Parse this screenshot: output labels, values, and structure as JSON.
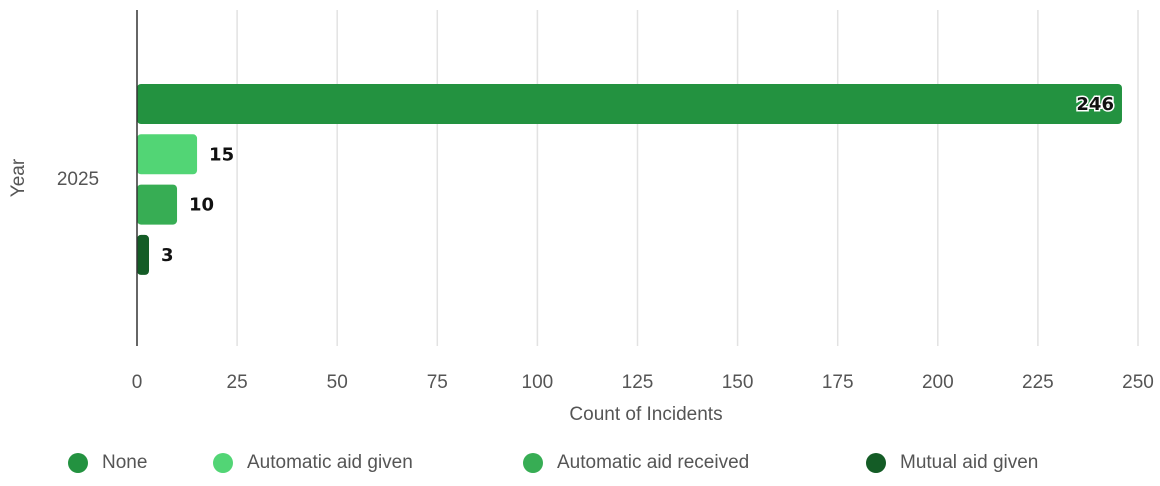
{
  "chart_data": {
    "type": "bar",
    "orientation": "horizontal",
    "categories": [
      "2025"
    ],
    "series": [
      {
        "name": "None",
        "values": [
          246
        ],
        "color": "#239240"
      },
      {
        "name": "Automatic aid given",
        "values": [
          15
        ],
        "color": "#52d575"
      },
      {
        "name": "Automatic aid received",
        "values": [
          10
        ],
        "color": "#37ad54"
      },
      {
        "name": "Mutual aid given",
        "values": [
          3
        ],
        "color": "#145c26"
      }
    ],
    "xlabel": "Count of Incidents",
    "ylabel": "Year",
    "xlim": [
      0,
      250
    ],
    "xticks": [
      "0",
      "25",
      "50",
      "75",
      "100",
      "125",
      "150",
      "175",
      "200",
      "225",
      "250"
    ],
    "grid": true,
    "legend_position": "bottom"
  }
}
